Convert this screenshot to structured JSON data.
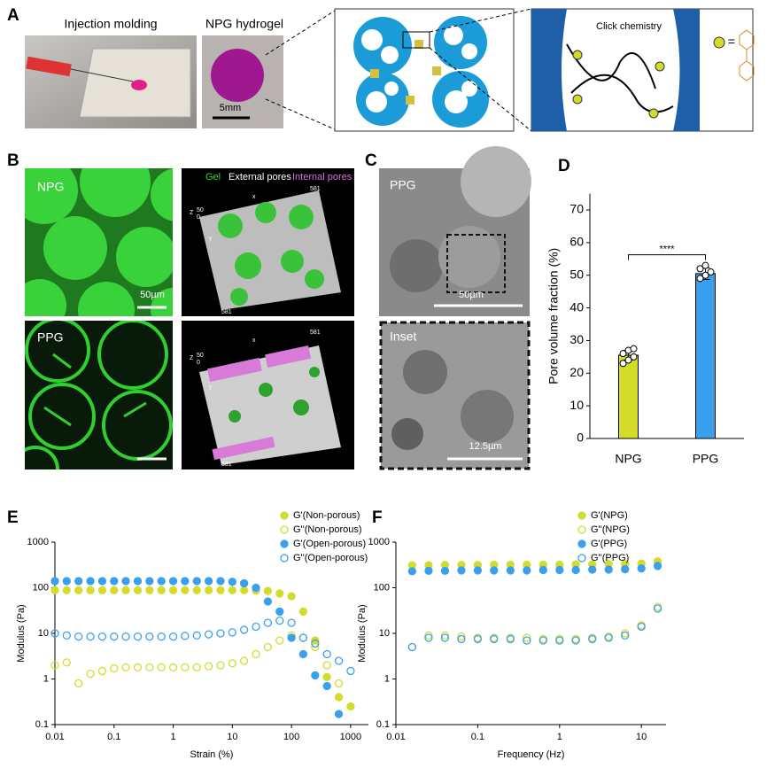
{
  "figure": {
    "letters": [
      "A",
      "B",
      "C",
      "D",
      "E",
      "F"
    ],
    "a": {
      "photo1": "Injection molding",
      "photo2": "NPG hydrogel",
      "scale": "5mm",
      "click": "Click chemistry",
      "equals": "="
    },
    "b": {
      "npg": "NPG",
      "ppg": "PPG",
      "scale": "50µm",
      "legend": [
        "Gel",
        "External pores",
        "Internal pores"
      ],
      "axes": [
        "x",
        "581",
        "Z",
        "50",
        "0",
        "Y",
        "581"
      ]
    },
    "c": {
      "ppg": "PPG",
      "scale": "50µm",
      "inset": "Inset",
      "inset_scale": "12.5µm"
    }
  },
  "chart_data": [
    {
      "type": "bar",
      "y_label": "Pore volume fraction (%)",
      "categories": [
        "NPG",
        "PPG"
      ],
      "values": [
        25.5,
        50.5
      ],
      "errors": [
        1.5,
        1.8
      ],
      "colors": [
        "#d4dc2a",
        "#3aa0ee"
      ],
      "points": [
        [
          23,
          24,
          25,
          26,
          27,
          27.5
        ],
        [
          49,
          50,
          51,
          52,
          53
        ]
      ],
      "significance": "****",
      "ylim": [
        0,
        75
      ],
      "yticks": [
        0,
        10,
        20,
        30,
        40,
        50,
        60,
        70
      ]
    },
    {
      "type": "scatter",
      "x_label": "Strain (%)",
      "y_label": "Modulus (Pa)",
      "log_x": true,
      "log_y": true,
      "legend": "upper right",
      "xlim": [
        0.01,
        2000
      ],
      "ylim": [
        0.1,
        1000
      ],
      "xticks": [
        0.01,
        0.1,
        1,
        10,
        100,
        1000
      ],
      "yticks": [
        0.1,
        1,
        10,
        100,
        1000
      ],
      "x": [
        0.01,
        0.0158,
        0.0251,
        0.0398,
        0.0631,
        0.1,
        0.158,
        0.251,
        0.398,
        0.631,
        1,
        1.58,
        2.51,
        3.98,
        6.31,
        10,
        15.8,
        25.1,
        39.8,
        63.1,
        100,
        158,
        251,
        398,
        631,
        1000
      ],
      "series": [
        {
          "name": "G'(Non-porous)",
          "color": "#d4dc2a",
          "filled": true,
          "values": [
            88,
            88,
            88,
            88,
            88,
            88,
            88,
            88,
            88,
            88,
            88,
            88,
            88,
            88,
            88,
            88,
            88,
            87,
            85,
            75,
            65,
            30,
            7,
            1.1,
            0.4,
            0.25
          ]
        },
        {
          "name": "G''(Non-porous)",
          "color": "#d4dc2a",
          "filled": false,
          "values": [
            2,
            2.3,
            0.8,
            1.3,
            1.5,
            1.7,
            1.8,
            1.8,
            1.8,
            1.8,
            1.8,
            1.8,
            1.8,
            1.9,
            2,
            2.2,
            2.5,
            3.5,
            5,
            7,
            9,
            8,
            5,
            2,
            0.8,
            null
          ]
        },
        {
          "name": "G'(Open-porous)",
          "color": "#3aa0ee",
          "filled": true,
          "values": [
            140,
            140,
            140,
            140,
            140,
            140,
            140,
            140,
            140,
            140,
            140,
            140,
            140,
            140,
            140,
            135,
            125,
            100,
            50,
            30,
            8,
            3.5,
            1.2,
            0.7,
            0.17,
            null
          ]
        },
        {
          "name": "G''(Open-porous)",
          "color": "#3aa0ee",
          "filled": false,
          "values": [
            10,
            9,
            8.5,
            8.5,
            8.5,
            8.5,
            8.5,
            8.5,
            8.5,
            8.5,
            8.5,
            8.8,
            9,
            9.5,
            10,
            10.5,
            12,
            14,
            17,
            19,
            17,
            8,
            6,
            3.5,
            2.5,
            1.5
          ]
        }
      ]
    },
    {
      "type": "scatter",
      "x_label": "Frequency (Hz)",
      "y_label": "Modulus (Pa)",
      "log_x": true,
      "log_y": true,
      "legend": "upper right",
      "xlim": [
        0.01,
        20
      ],
      "ylim": [
        0.1,
        1000
      ],
      "xticks": [
        0.01,
        0.1,
        1,
        10
      ],
      "yticks": [
        0.1,
        1,
        10,
        100,
        1000
      ],
      "x": [
        0.0158,
        0.0251,
        0.0398,
        0.0631,
        0.1,
        0.158,
        0.251,
        0.398,
        0.631,
        1,
        1.58,
        2.51,
        3.98,
        6.31,
        10,
        15.8
      ],
      "series": [
        {
          "name": "G'(NPG)",
          "color": "#d4dc2a",
          "filled": true,
          "values": [
            310,
            310,
            315,
            315,
            315,
            320,
            320,
            320,
            320,
            320,
            325,
            325,
            330,
            330,
            340,
            380
          ]
        },
        {
          "name": "G''(NPG)",
          "color": "#d4dc2a",
          "filled": false,
          "values": [
            5,
            9,
            9,
            8.5,
            8,
            8,
            8,
            8,
            7.5,
            7.5,
            7.5,
            8,
            8.5,
            10,
            15,
            38
          ]
        },
        {
          "name": "G'(PPG)",
          "color": "#3aa0ee",
          "filled": true,
          "values": [
            230,
            235,
            235,
            240,
            240,
            240,
            240,
            240,
            245,
            245,
            245,
            250,
            250,
            255,
            265,
            300
          ]
        },
        {
          "name": "G''(PPG)",
          "color": "#3aa0ee",
          "filled": false,
          "values": [
            5,
            8,
            8,
            7.5,
            7.5,
            7.5,
            7.5,
            7,
            7,
            7,
            7,
            7.5,
            8,
            9,
            14,
            35
          ]
        }
      ]
    }
  ]
}
